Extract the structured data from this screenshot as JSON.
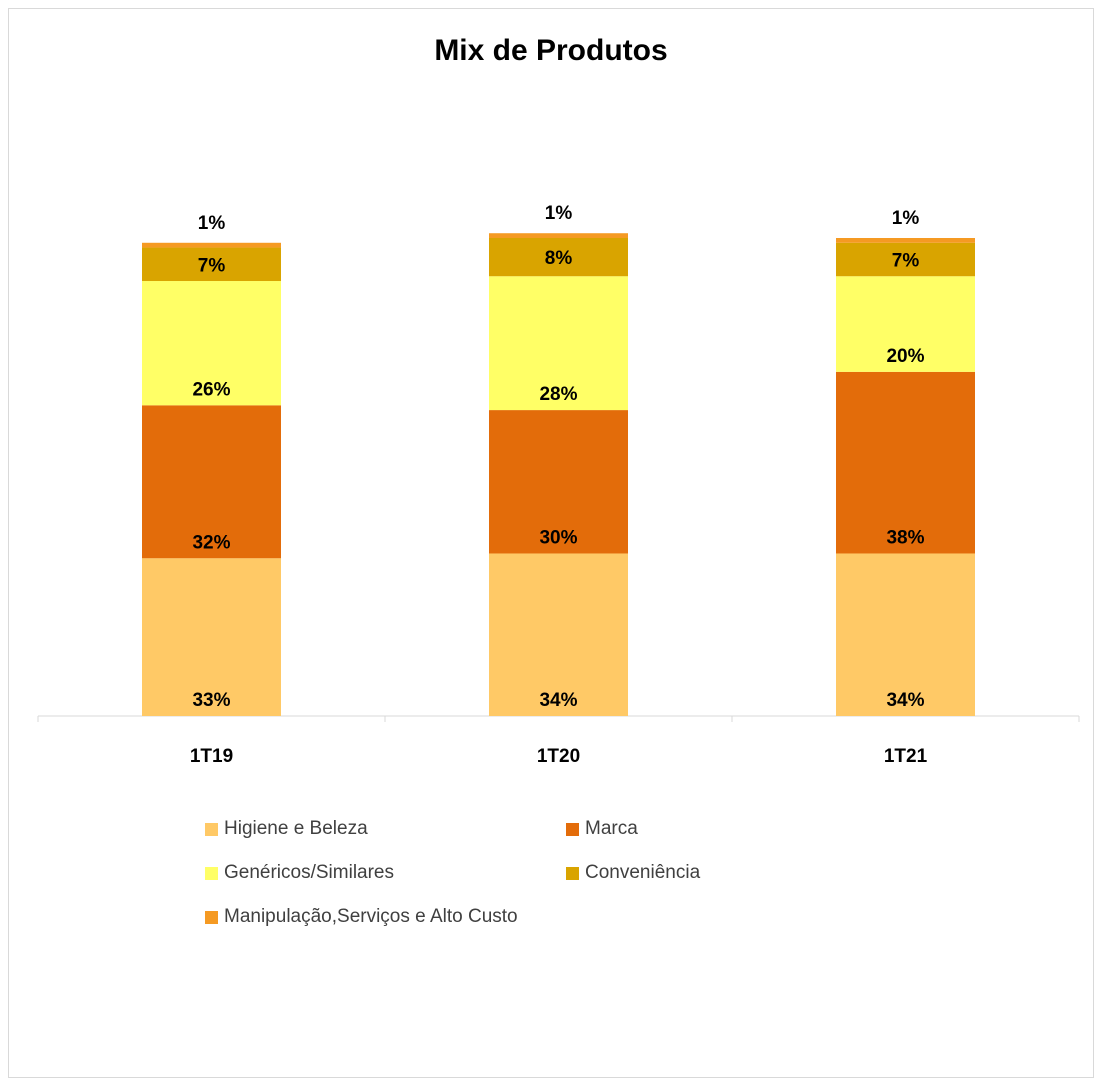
{
  "chart_data": {
    "type": "bar",
    "stacked": true,
    "title": "Mix de Produtos",
    "categories": [
      "1T19",
      "1T20",
      "1T21"
    ],
    "series": [
      {
        "name": "Higiene e Beleza",
        "values": [
          33,
          34,
          34
        ],
        "labels": [
          "33%",
          "34%",
          "34%"
        ],
        "color": "#ffc966"
      },
      {
        "name": "Marca",
        "values": [
          32,
          30,
          38
        ],
        "labels": [
          "32%",
          "30%",
          "38%"
        ],
        "color": "#e36c0a"
      },
      {
        "name": "Genéricos/Similares",
        "values": [
          26,
          28,
          20
        ],
        "labels": [
          "26%",
          "28%",
          "20%"
        ],
        "color": "#ffff66"
      },
      {
        "name": "Conveniência",
        "values": [
          7,
          8,
          7
        ],
        "labels": [
          "7%",
          "8%",
          "7%"
        ],
        "color": "#d9a400"
      },
      {
        "name": "Manipulação,Serviços e Alto Custo",
        "values": [
          1,
          1,
          1
        ],
        "labels": [
          "1%",
          "1%",
          "1%"
        ],
        "color": "#f59a23"
      }
    ],
    "ylim": [
      0,
      100
    ],
    "grid": false,
    "legend_position": "bottom"
  }
}
